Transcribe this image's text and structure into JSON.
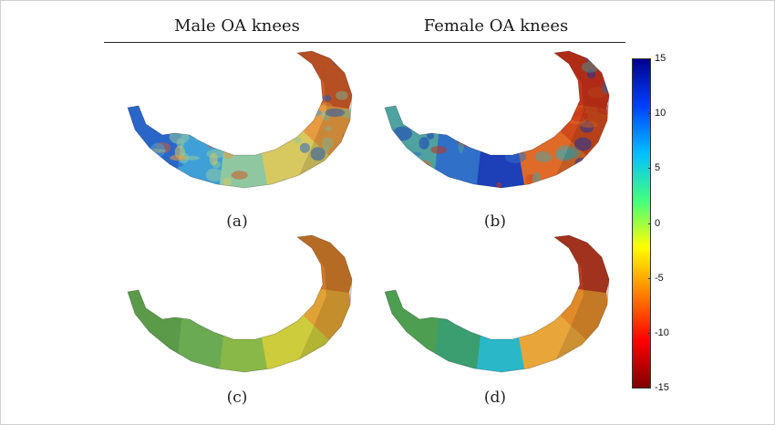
{
  "headers": {
    "male": "Male OA knees",
    "female": "Female OA knees"
  },
  "panels": [
    {
      "id": "a",
      "label": "(a)",
      "style": "textured",
      "region_colors": [
        "#2a66c8",
        "#3fa0d8",
        "#8fc8a0",
        "#d8c860",
        "#e89a40",
        "#d05a28"
      ]
    },
    {
      "id": "b",
      "label": "(b)",
      "style": "textured",
      "region_colors": [
        "#4fa2a0",
        "#3070c8",
        "#1d3fb8",
        "#e06a28",
        "#d04a1c",
        "#c8321a"
      ]
    },
    {
      "id": "c",
      "label": "(c)",
      "style": "smooth",
      "region_colors": [
        "#5a9a48",
        "#6aaa52",
        "#8ab848",
        "#cccc3c",
        "#e0a234",
        "#d07a2a"
      ]
    },
    {
      "id": "d",
      "label": "(d)",
      "style": "smooth",
      "region_colors": [
        "#4e9e52",
        "#3a9e70",
        "#2ab8c8",
        "#e8a63a",
        "#e08a2a",
        "#b83a22"
      ]
    }
  ],
  "colorbar": {
    "ticks": [
      "15",
      "10",
      "5",
      "0",
      "-5",
      "-10",
      "-15"
    ],
    "stops": [
      "#00008f",
      "#0040ff",
      "#00bfff",
      "#40ff80",
      "#ffff00",
      "#ff8000",
      "#ff0000",
      "#800000"
    ]
  }
}
